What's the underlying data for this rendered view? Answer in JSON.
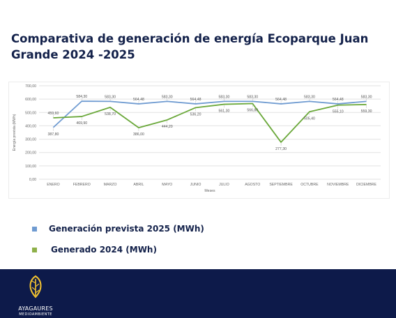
{
  "title": "Comparativa de generación de energía Ecoparque Juan Grande 2024 -2025",
  "legend": [
    {
      "label": "Generación prevista 2025 (MWh)",
      "color": "#6f9bd1"
    },
    {
      "label": "Generado 2024 (MWh)",
      "color": "#8eb049"
    }
  ],
  "footer": {
    "brand": "AYAGAURES",
    "tagline": "MEDIOAMBIENTE",
    "background": "#0d1a4a",
    "logo_icon": "leaf-icon"
  },
  "chart_data": {
    "type": "line",
    "categories": [
      "ENERO",
      "FEBRERO",
      "MARZO",
      "ABRIL",
      "MAYO",
      "JUNIO",
      "JULIO",
      "AGOSTO",
      "SEPTIEMBRE",
      "OCTUBRE",
      "NOVIEMBRE",
      "DICIEMBRE"
    ],
    "series": [
      {
        "name": "Generación prevista 2025 (MWh)",
        "color": "#6f9bd1",
        "values": [
          387.8,
          584.3,
          583.3,
          564.48,
          583.3,
          564.48,
          583.3,
          583.3,
          564.48,
          583.3,
          564.48,
          583.3
        ],
        "labels": [
          "387,80",
          "584,30",
          "583,30",
          "564,48",
          "583,30",
          "564,48",
          "583,30",
          "583,30",
          "564,48",
          "583,30",
          "564,48",
          "583,30"
        ]
      },
      {
        "name": "Generado 2024 (MWh)",
        "color": "#6aa83a",
        "values": [
          459.6,
          469.9,
          538.7,
          386.0,
          444.2,
          536.2,
          561.3,
          566.8,
          277.3,
          505.4,
          555.1,
          559.3
        ],
        "labels": [
          "459,60",
          "469,90",
          "538,70",
          "386,00",
          "444,20",
          "536,20",
          "561,30",
          "566,80",
          "277,30",
          "505,40",
          "555,10",
          "559,30"
        ]
      }
    ],
    "xlabel": "Meses",
    "ylabel": "Energía prevista (MWh)",
    "ylim": [
      0,
      700
    ],
    "yticks": [
      0,
      100,
      200,
      300,
      400,
      500,
      600,
      700
    ],
    "ytick_labels": [
      "0,00",
      "100,00",
      "200,00",
      "300,00",
      "400,00",
      "500,00",
      "600,00",
      "700,00"
    ],
    "grid": true,
    "legend_position": "below"
  }
}
